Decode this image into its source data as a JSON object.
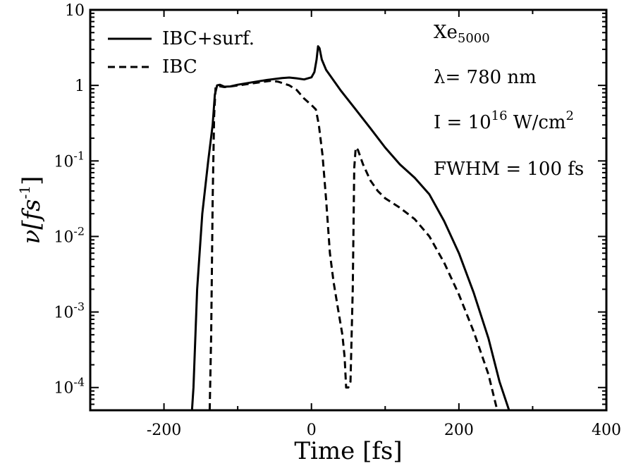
{
  "chart_data": {
    "type": "line",
    "xlabel": "Time [fs]",
    "ylabel": {
      "base": "ν[fs",
      "sup": "-1",
      "close": "]"
    },
    "xlim": [
      -300,
      400
    ],
    "ylim": [
      5e-05,
      10
    ],
    "yscale": "log",
    "grid": false,
    "legend_position": "top-left",
    "x_ticks": [
      {
        "value": -200,
        "label": "-200"
      },
      {
        "value": 0,
        "label": "0"
      },
      {
        "value": 200,
        "label": "200"
      },
      {
        "value": 400,
        "label": "400"
      }
    ],
    "y_ticks": [
      {
        "value": 10,
        "base": "10",
        "exp": ""
      },
      {
        "value": 1,
        "base": "1",
        "exp": ""
      },
      {
        "value": 0.1,
        "base": "10",
        "exp": "-1"
      },
      {
        "value": 0.01,
        "base": "10",
        "exp": "-2"
      },
      {
        "value": 0.001,
        "base": "10",
        "exp": "-3"
      },
      {
        "value": 0.0001,
        "base": "10",
        "exp": "-4"
      }
    ],
    "annotations": {
      "cluster": {
        "text": "Xe",
        "sub": "5000"
      },
      "wavelength": "λ= 780 nm",
      "intensity": {
        "text": "I = 10",
        "sup": "16",
        "text2": " W/cm",
        "sup2": "2"
      },
      "fwhm": "FWHM = 100 fs"
    },
    "series": [
      {
        "name": "IBC+surf.",
        "style": "solid",
        "points": [
          [
            -162,
            5e-05
          ],
          [
            -160,
            0.0001
          ],
          [
            -155,
            0.002
          ],
          [
            -148,
            0.02
          ],
          [
            -140,
            0.1
          ],
          [
            -134,
            0.3
          ],
          [
            -131,
            0.75
          ],
          [
            -128,
            1.0
          ],
          [
            -124,
            1.02
          ],
          [
            -118,
            0.96
          ],
          [
            -110,
            0.97
          ],
          [
            -100,
            1.02
          ],
          [
            -80,
            1.1
          ],
          [
            -60,
            1.18
          ],
          [
            -40,
            1.25
          ],
          [
            -30,
            1.27
          ],
          [
            -20,
            1.24
          ],
          [
            -10,
            1.2
          ],
          [
            0,
            1.28
          ],
          [
            4,
            1.5
          ],
          [
            7,
            2.2
          ],
          [
            9,
            3.3
          ],
          [
            11,
            3.1
          ],
          [
            14,
            2.2
          ],
          [
            20,
            1.6
          ],
          [
            40,
            0.85
          ],
          [
            60,
            0.48
          ],
          [
            80,
            0.27
          ],
          [
            100,
            0.15
          ],
          [
            120,
            0.09
          ],
          [
            140,
            0.06
          ],
          [
            160,
            0.036
          ],
          [
            180,
            0.016
          ],
          [
            200,
            0.006
          ],
          [
            220,
            0.0018
          ],
          [
            240,
            0.00045
          ],
          [
            255,
            0.00012
          ],
          [
            268,
            5e-05
          ]
        ]
      },
      {
        "name": "IBC",
        "style": "dashed",
        "points": [
          [
            -138,
            5e-05
          ],
          [
            -136,
            0.0005
          ],
          [
            -134,
            0.03
          ],
          [
            -132,
            0.4
          ],
          [
            -130,
            0.95
          ],
          [
            -126,
            0.98
          ],
          [
            -118,
            0.95
          ],
          [
            -110,
            0.97
          ],
          [
            -90,
            1.03
          ],
          [
            -70,
            1.1
          ],
          [
            -55,
            1.15
          ],
          [
            -45,
            1.12
          ],
          [
            -30,
            1.0
          ],
          [
            -20,
            0.87
          ],
          [
            -10,
            0.67
          ],
          [
            0,
            0.55
          ],
          [
            6,
            0.48
          ],
          [
            10,
            0.3
          ],
          [
            15,
            0.12
          ],
          [
            20,
            0.03
          ],
          [
            25,
            0.006
          ],
          [
            30,
            0.0025
          ],
          [
            36,
            0.0011
          ],
          [
            42,
            0.0005
          ],
          [
            45,
            0.00025
          ],
          [
            47,
            0.0001
          ],
          [
            50,
            0.0001
          ],
          [
            53,
            0.00012
          ],
          [
            56,
            0.002
          ],
          [
            58,
            0.08
          ],
          [
            60,
            0.15
          ],
          [
            63,
            0.14
          ],
          [
            70,
            0.09
          ],
          [
            80,
            0.055
          ],
          [
            90,
            0.04
          ],
          [
            100,
            0.032
          ],
          [
            120,
            0.024
          ],
          [
            140,
            0.017
          ],
          [
            160,
            0.01
          ],
          [
            180,
            0.0045
          ],
          [
            200,
            0.0017
          ],
          [
            220,
            0.00055
          ],
          [
            240,
            0.00015
          ],
          [
            252,
            5e-05
          ]
        ]
      }
    ]
  }
}
